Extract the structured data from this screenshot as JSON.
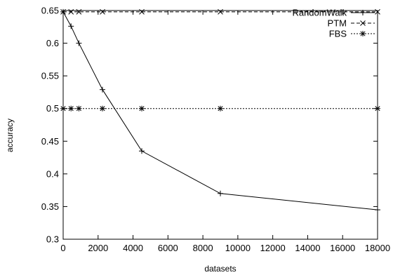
{
  "chart_data": {
    "type": "line",
    "xlabel": "datasets",
    "ylabel": "accuracy",
    "xlim": [
      0,
      18000
    ],
    "ylim": [
      0.3,
      0.65
    ],
    "x_ticks": [
      0,
      2000,
      4000,
      6000,
      8000,
      10000,
      12000,
      14000,
      16000,
      18000
    ],
    "y_ticks": [
      0.3,
      0.35,
      0.4,
      0.45,
      0.5,
      0.55,
      0.6,
      0.65
    ],
    "y_tick_labels": [
      "0.3",
      "0.35",
      "0.4",
      "0.45",
      "0.5",
      "0.55",
      "0.6",
      "0.65"
    ],
    "grid": false,
    "legend_position": "top-right",
    "series": [
      {
        "name": "RandomWalk",
        "style": "solid",
        "marker": "plus",
        "x": [
          0,
          450,
          900,
          2250,
          4500,
          9000,
          18000
        ],
        "y": [
          0.648,
          0.626,
          0.6,
          0.529,
          0.435,
          0.37,
          0.345
        ]
      },
      {
        "name": "PTM",
        "style": "dashed",
        "marker": "cross",
        "x": [
          0,
          450,
          900,
          2250,
          4500,
          9000,
          18000
        ],
        "y": [
          0.648,
          0.648,
          0.648,
          0.648,
          0.648,
          0.648,
          0.648
        ]
      },
      {
        "name": "FBS",
        "style": "dotted",
        "marker": "star",
        "x": [
          0,
          450,
          900,
          2250,
          4500,
          9000,
          18000
        ],
        "y": [
          0.5,
          0.5,
          0.5,
          0.5,
          0.5,
          0.5,
          0.5
        ]
      }
    ]
  }
}
